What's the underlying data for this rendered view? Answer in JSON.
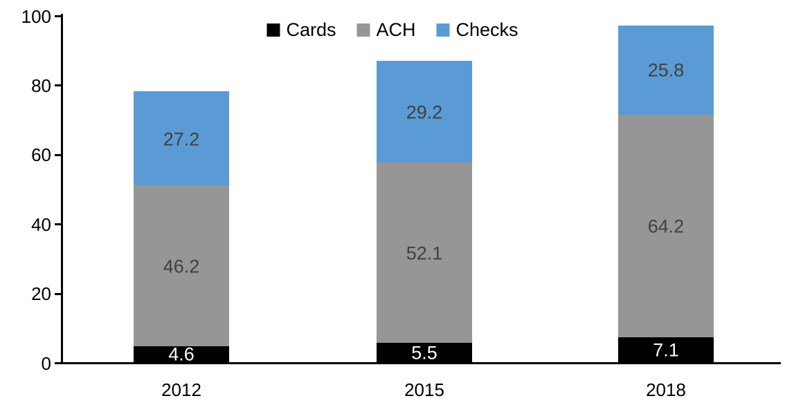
{
  "chart_data": {
    "type": "bar",
    "stacked": true,
    "title": "",
    "xlabel": "",
    "ylabel": "",
    "categories": [
      "2012",
      "2015",
      "2018"
    ],
    "series": [
      {
        "name": "Cards",
        "color": "#000000",
        "label_color": "#ffffff",
        "values": [
          4.6,
          5.5,
          7.1
        ]
      },
      {
        "name": "ACH",
        "color": "#969696",
        "label_color": "#404040",
        "values": [
          46.2,
          52.1,
          64.2
        ]
      },
      {
        "name": "Checks",
        "color": "#5B9BD5",
        "label_color": "#404040",
        "values": [
          27.2,
          29.2,
          25.8
        ]
      }
    ],
    "totals": [
      78.0,
      86.8,
      97.1
    ],
    "yticks": [
      0,
      20,
      40,
      60,
      80,
      100
    ],
    "ylim": [
      0,
      100
    ],
    "grid": false,
    "legend_position": "top-center",
    "axis_color": "#000000"
  }
}
